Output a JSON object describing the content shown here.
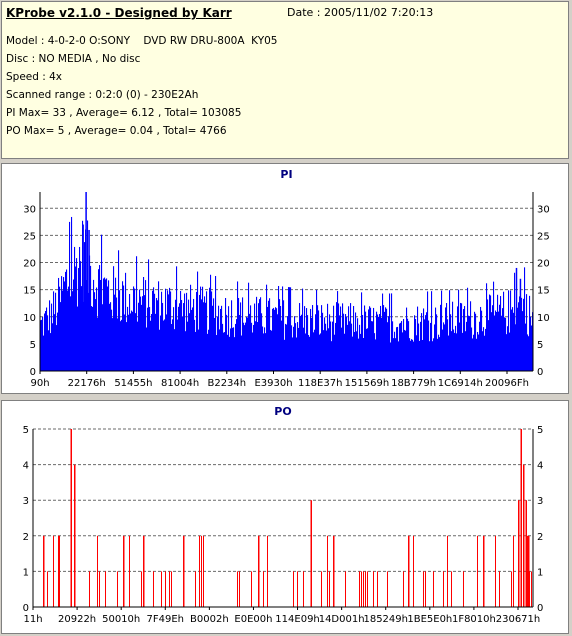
{
  "header": {
    "title": "KProbe v2.1.0 - Designed by Karr",
    "date": "Date : 2005/11/02 7:20:13",
    "lines": [
      "Model : 4-0-2-0 O:SONY    DVD RW DRU-800A  KY05",
      "Disc : NO MEDIA , No disc",
      "Speed : 4x",
      "Scanned range : 0:2:0 (0) - 230E2Ah",
      "PI Max= 33 , Average= 6.12 , Total= 103085",
      "PO Max= 5 , Average= 0.04 , Total= 4766"
    ]
  },
  "colors": {
    "pi": "#0000ff",
    "po": "#ff0000",
    "grid": "#6a6a6a",
    "title": "#000080"
  },
  "chart_data": [
    {
      "type": "bar",
      "title": "PI",
      "ylim": [
        0,
        33
      ],
      "yticks": [
        0,
        5,
        10,
        15,
        20,
        25,
        30
      ],
      "xtick_labels": [
        "90h",
        "22176h",
        "51455h",
        "81004h",
        "B2234h",
        "E3930h",
        "118E37h",
        "151569h",
        "18B779h",
        "1C6914h",
        "20096Fh"
      ],
      "grid": "dashed",
      "profile": [
        [
          0,
          9
        ],
        [
          2,
          11
        ],
        [
          3.5,
          13
        ],
        [
          5,
          17
        ],
        [
          7,
          20
        ],
        [
          8,
          22
        ],
        [
          9,
          23
        ],
        [
          10,
          20
        ],
        [
          12,
          17
        ],
        [
          15,
          15
        ],
        [
          20,
          14
        ],
        [
          30,
          12.5
        ],
        [
          40,
          11
        ],
        [
          55,
          10
        ],
        [
          70,
          9.5
        ],
        [
          85,
          10
        ],
        [
          92,
          11
        ],
        [
          96,
          12
        ],
        [
          98,
          13
        ],
        [
          100,
          10
        ]
      ],
      "peaks": [
        [
          9.2,
          33
        ],
        [
          8.6,
          27
        ],
        [
          9.8,
          26
        ],
        [
          96.5,
          19
        ],
        [
          97.3,
          17
        ]
      ]
    },
    {
      "type": "bar",
      "title": "PO",
      "ylim": [
        0,
        5
      ],
      "yticks": [
        0,
        1,
        2,
        3,
        4,
        5
      ],
      "xtick_labels": [
        "11h",
        "20922h",
        "50010h",
        "7F49Eh",
        "B0002h",
        "E0E00h",
        "114E09h",
        "14D001h",
        "185249h",
        "1BE5E0h",
        "1F8010h",
        "230671h"
      ],
      "grid": "dashed",
      "peaks": [
        [
          7.5,
          5
        ],
        [
          97.5,
          5
        ],
        [
          8.2,
          4
        ],
        [
          98,
          4
        ],
        [
          55.5,
          3
        ],
        [
          97,
          3
        ],
        [
          98.5,
          3
        ],
        [
          2,
          2
        ],
        [
          5,
          2
        ],
        [
          18,
          2
        ],
        [
          22,
          2
        ],
        [
          30,
          2
        ],
        [
          45,
          2
        ],
        [
          60,
          2
        ],
        [
          75,
          2
        ],
        [
          90,
          2
        ],
        [
          99,
          2
        ]
      ]
    }
  ]
}
